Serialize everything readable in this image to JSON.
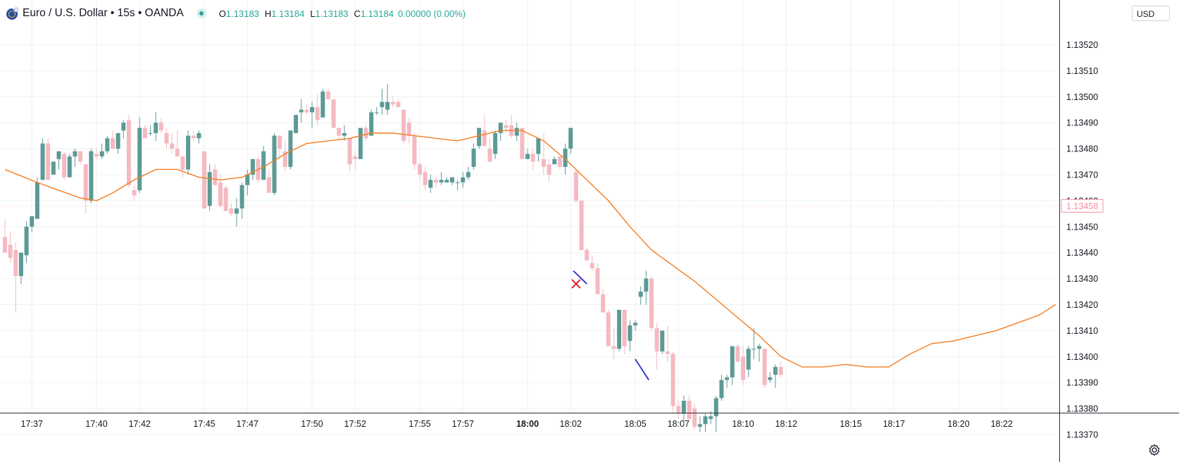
{
  "header": {
    "symbol_title": "Euro / U.S. Dollar • 15s • OANDA",
    "o_label": "O",
    "o_value": "1.13183",
    "h_label": "H",
    "h_value": "1.13184",
    "l_label": "L",
    "l_value": "1.13183",
    "c_label": "C",
    "c_value": "1.13184",
    "change": "0.00000 (0.00%)"
  },
  "currency_button": "USD",
  "icons": {
    "logo": "euro-flag-logo-icon",
    "status": "market-status-dot-icon",
    "settings": "gear-icon"
  },
  "colors": {
    "up": "#5b9a96",
    "down": "#f4b9c1",
    "ma": "#f57c1f",
    "price_label": "#f48fa0",
    "marker": "#3b3bd0"
  },
  "chart_data": {
    "type": "candlestick",
    "ylim": [
      1.13367,
      1.13535
    ],
    "y_ticks": [
      "1.13370",
      "1.13380",
      "1.13390",
      "1.13400",
      "1.13410",
      "1.13420",
      "1.13430",
      "1.13440",
      "1.13450",
      "1.13460",
      "1.13470",
      "1.13480",
      "1.13490",
      "1.13500",
      "1.13510",
      "1.13520"
    ],
    "x_ticks": [
      {
        "label": "17:37",
        "i": 5
      },
      {
        "label": "17:40",
        "i": 17
      },
      {
        "label": "17:42",
        "i": 25
      },
      {
        "label": "17:45",
        "i": 37
      },
      {
        "label": "17:47",
        "i": 45
      },
      {
        "label": "17:50",
        "i": 57
      },
      {
        "label": "17:52",
        "i": 65
      },
      {
        "label": "17:55",
        "i": 77
      },
      {
        "label": "17:57",
        "i": 85
      },
      {
        "label": "18:00",
        "i": 97,
        "bold": true
      },
      {
        "label": "18:02",
        "i": 105
      },
      {
        "label": "18:05",
        "i": 117
      },
      {
        "label": "18:07",
        "i": 125
      },
      {
        "label": "18:10",
        "i": 137
      },
      {
        "label": "18:12",
        "i": 145
      },
      {
        "label": "18:15",
        "i": 157
      },
      {
        "label": "18:17",
        "i": 165
      },
      {
        "label": "18:20",
        "i": 177
      },
      {
        "label": "18:22",
        "i": 185
      }
    ],
    "last_price_label": "1.13458",
    "last_price": 1.13458,
    "moving_average": [
      [
        0,
        1.13472
      ],
      [
        6,
        1.13467
      ],
      [
        10,
        1.13464
      ],
      [
        14,
        1.13461
      ],
      [
        17,
        1.1346
      ],
      [
        20,
        1.13463
      ],
      [
        24,
        1.13468
      ],
      [
        28,
        1.13472
      ],
      [
        32,
        1.13472
      ],
      [
        36,
        1.13469
      ],
      [
        40,
        1.13468
      ],
      [
        44,
        1.13469
      ],
      [
        48,
        1.13473
      ],
      [
        52,
        1.13478
      ],
      [
        56,
        1.13482
      ],
      [
        60,
        1.13483
      ],
      [
        64,
        1.13484
      ],
      [
        68,
        1.13486
      ],
      [
        72,
        1.13486
      ],
      [
        76,
        1.13485
      ],
      [
        80,
        1.13484
      ],
      [
        84,
        1.13483
      ],
      [
        88,
        1.13485
      ],
      [
        92,
        1.13487
      ],
      [
        96,
        1.13487
      ],
      [
        100,
        1.13483
      ],
      [
        104,
        1.13476
      ],
      [
        108,
        1.13468
      ],
      [
        112,
        1.1346
      ],
      [
        116,
        1.1345
      ],
      [
        120,
        1.13441
      ],
      [
        124,
        1.13435
      ],
      [
        128,
        1.13429
      ],
      [
        132,
        1.13422
      ],
      [
        136,
        1.13415
      ],
      [
        140,
        1.13408
      ],
      [
        144,
        1.134
      ],
      [
        148,
        1.13396
      ],
      [
        152,
        1.13396
      ],
      [
        156,
        1.13397
      ],
      [
        160,
        1.13396
      ],
      [
        164,
        1.13396
      ],
      [
        168,
        1.13401
      ],
      [
        172,
        1.13405
      ],
      [
        176,
        1.13406
      ],
      [
        180,
        1.13408
      ],
      [
        184,
        1.1341
      ],
      [
        188,
        1.13413
      ],
      [
        192,
        1.13416
      ],
      [
        195,
        1.1342
      ]
    ],
    "candles": [
      {
        "o": 1.13446,
        "h": 1.13453,
        "l": 1.1344,
        "c": 1.1344
      },
      {
        "o": 1.13443,
        "h": 1.13448,
        "l": 1.13436,
        "c": 1.13438
      },
      {
        "o": 1.13441,
        "h": 1.13444,
        "l": 1.13417,
        "c": 1.13431
      },
      {
        "o": 1.13431,
        "h": 1.1344,
        "l": 1.13428,
        "c": 1.1344
      },
      {
        "o": 1.13439,
        "h": 1.13452,
        "l": 1.13436,
        "c": 1.1345
      },
      {
        "o": 1.1345,
        "h": 1.13454,
        "l": 1.13448,
        "c": 1.13454
      },
      {
        "o": 1.13453,
        "h": 1.13469,
        "l": 1.13453,
        "c": 1.13467
      },
      {
        "o": 1.13468,
        "h": 1.13484,
        "l": 1.13468,
        "c": 1.13482
      },
      {
        "o": 1.13482,
        "h": 1.13484,
        "l": 1.13468,
        "c": 1.13468
      },
      {
        "o": 1.1347,
        "h": 1.13475,
        "l": 1.1347,
        "c": 1.13475
      },
      {
        "o": 1.13476,
        "h": 1.13479,
        "l": 1.13472,
        "c": 1.13479
      },
      {
        "o": 1.13478,
        "h": 1.13479,
        "l": 1.13468,
        "c": 1.13469
      },
      {
        "o": 1.13469,
        "h": 1.13478,
        "l": 1.13469,
        "c": 1.13477
      },
      {
        "o": 1.13477,
        "h": 1.1348,
        "l": 1.13473,
        "c": 1.13479
      },
      {
        "o": 1.13479,
        "h": 1.13479,
        "l": 1.13474,
        "c": 1.13475
      },
      {
        "o": 1.13474,
        "h": 1.13474,
        "l": 1.13455,
        "c": 1.1346
      },
      {
        "o": 1.1346,
        "h": 1.1348,
        "l": 1.13459,
        "c": 1.13479
      },
      {
        "o": 1.13478,
        "h": 1.1348,
        "l": 1.13476,
        "c": 1.13477
      },
      {
        "o": 1.13477,
        "h": 1.13482,
        "l": 1.13476,
        "c": 1.13479
      },
      {
        "o": 1.13479,
        "h": 1.13485,
        "l": 1.13478,
        "c": 1.13484
      },
      {
        "o": 1.13484,
        "h": 1.13487,
        "l": 1.1348,
        "c": 1.1348
      },
      {
        "o": 1.1348,
        "h": 1.13486,
        "l": 1.13478,
        "c": 1.13486
      },
      {
        "o": 1.13487,
        "h": 1.13491,
        "l": 1.13484,
        "c": 1.1349
      },
      {
        "o": 1.13491,
        "h": 1.13493,
        "l": 1.13465,
        "c": 1.13466
      },
      {
        "o": 1.13464,
        "h": 1.13466,
        "l": 1.1346,
        "c": 1.13462
      },
      {
        "o": 1.13464,
        "h": 1.13492,
        "l": 1.13463,
        "c": 1.13488
      },
      {
        "o": 1.13488,
        "h": 1.13489,
        "l": 1.13484,
        "c": 1.13484
      },
      {
        "o": 1.13486,
        "h": 1.13489,
        "l": 1.13485,
        "c": 1.13486
      },
      {
        "o": 1.13486,
        "h": 1.13494,
        "l": 1.13483,
        "c": 1.1349
      },
      {
        "o": 1.1349,
        "h": 1.13492,
        "l": 1.13486,
        "c": 1.13487
      },
      {
        "o": 1.13486,
        "h": 1.13488,
        "l": 1.1348,
        "c": 1.13482
      },
      {
        "o": 1.13482,
        "h": 1.13486,
        "l": 1.13478,
        "c": 1.1348
      },
      {
        "o": 1.1348,
        "h": 1.13487,
        "l": 1.13477,
        "c": 1.13477
      },
      {
        "o": 1.13477,
        "h": 1.13477,
        "l": 1.13469,
        "c": 1.13472
      },
      {
        "o": 1.13472,
        "h": 1.13487,
        "l": 1.1347,
        "c": 1.13485
      },
      {
        "o": 1.13485,
        "h": 1.13487,
        "l": 1.13483,
        "c": 1.13484
      },
      {
        "o": 1.13484,
        "h": 1.13487,
        "l": 1.13482,
        "c": 1.13486
      },
      {
        "o": 1.13479,
        "h": 1.13479,
        "l": 1.13457,
        "c": 1.13457
      },
      {
        "o": 1.13458,
        "h": 1.13474,
        "l": 1.13456,
        "c": 1.13471
      },
      {
        "o": 1.13472,
        "h": 1.13474,
        "l": 1.13466,
        "c": 1.13466
      },
      {
        "o": 1.13467,
        "h": 1.1347,
        "l": 1.13457,
        "c": 1.13458
      },
      {
        "o": 1.13465,
        "h": 1.13466,
        "l": 1.13456,
        "c": 1.13456
      },
      {
        "o": 1.13457,
        "h": 1.13459,
        "l": 1.13454,
        "c": 1.13455
      },
      {
        "o": 1.13455,
        "h": 1.13461,
        "l": 1.1345,
        "c": 1.13457
      },
      {
        "o": 1.13457,
        "h": 1.13467,
        "l": 1.13453,
        "c": 1.13466
      },
      {
        "o": 1.13466,
        "h": 1.13472,
        "l": 1.13462,
        "c": 1.1347
      },
      {
        "o": 1.1347,
        "h": 1.13476,
        "l": 1.13468,
        "c": 1.13476
      },
      {
        "o": 1.13476,
        "h": 1.13477,
        "l": 1.13467,
        "c": 1.13468
      },
      {
        "o": 1.13468,
        "h": 1.13481,
        "l": 1.13468,
        "c": 1.13479
      },
      {
        "o": 1.13469,
        "h": 1.13472,
        "l": 1.13463,
        "c": 1.13463
      },
      {
        "o": 1.13463,
        "h": 1.13486,
        "l": 1.13462,
        "c": 1.13485
      },
      {
        "o": 1.13485,
        "h": 1.13485,
        "l": 1.13476,
        "c": 1.1348
      },
      {
        "o": 1.13479,
        "h": 1.13483,
        "l": 1.13471,
        "c": 1.13473
      },
      {
        "o": 1.13473,
        "h": 1.13487,
        "l": 1.13472,
        "c": 1.13487
      },
      {
        "o": 1.13486,
        "h": 1.13493,
        "l": 1.13486,
        "c": 1.13493
      },
      {
        "o": 1.13494,
        "h": 1.13499,
        "l": 1.1349,
        "c": 1.13495
      },
      {
        "o": 1.13495,
        "h": 1.13497,
        "l": 1.13493,
        "c": 1.13494
      },
      {
        "o": 1.13494,
        "h": 1.13498,
        "l": 1.13488,
        "c": 1.13496
      },
      {
        "o": 1.13496,
        "h": 1.13501,
        "l": 1.13489,
        "c": 1.13491
      },
      {
        "o": 1.13492,
        "h": 1.13503,
        "l": 1.13492,
        "c": 1.13502
      },
      {
        "o": 1.13502,
        "h": 1.13503,
        "l": 1.13499,
        "c": 1.13499
      },
      {
        "o": 1.13499,
        "h": 1.13499,
        "l": 1.13488,
        "c": 1.13488
      },
      {
        "o": 1.13488,
        "h": 1.13488,
        "l": 1.13484,
        "c": 1.13485
      },
      {
        "o": 1.13485,
        "h": 1.13489,
        "l": 1.13483,
        "c": 1.13486
      },
      {
        "o": 1.13484,
        "h": 1.13484,
        "l": 1.13471,
        "c": 1.13474
      },
      {
        "o": 1.13477,
        "h": 1.13479,
        "l": 1.13472,
        "c": 1.13476
      },
      {
        "o": 1.13476,
        "h": 1.13488,
        "l": 1.13476,
        "c": 1.13488
      },
      {
        "o": 1.13488,
        "h": 1.13489,
        "l": 1.13483,
        "c": 1.13484
      },
      {
        "o": 1.13485,
        "h": 1.13495,
        "l": 1.13485,
        "c": 1.13494
      },
      {
        "o": 1.13494,
        "h": 1.13496,
        "l": 1.13493,
        "c": 1.13494
      },
      {
        "o": 1.13496,
        "h": 1.13503,
        "l": 1.13493,
        "c": 1.13498
      },
      {
        "o": 1.13495,
        "h": 1.13505,
        "l": 1.13493,
        "c": 1.13498
      },
      {
        "o": 1.13498,
        "h": 1.135,
        "l": 1.13496,
        "c": 1.13497
      },
      {
        "o": 1.13498,
        "h": 1.13499,
        "l": 1.13496,
        "c": 1.13496
      },
      {
        "o": 1.13495,
        "h": 1.13495,
        "l": 1.13482,
        "c": 1.13483
      },
      {
        "o": 1.1349,
        "h": 1.13492,
        "l": 1.13482,
        "c": 1.13485
      },
      {
        "o": 1.13485,
        "h": 1.13486,
        "l": 1.13472,
        "c": 1.13474
      },
      {
        "o": 1.13474,
        "h": 1.13475,
        "l": 1.13467,
        "c": 1.1347
      },
      {
        "o": 1.13471,
        "h": 1.13473,
        "l": 1.13464,
        "c": 1.13466
      },
      {
        "o": 1.13465,
        "h": 1.1347,
        "l": 1.13463,
        "c": 1.13468
      },
      {
        "o": 1.13468,
        "h": 1.13469,
        "l": 1.13465,
        "c": 1.13467
      },
      {
        "o": 1.13467,
        "h": 1.13471,
        "l": 1.13466,
        "c": 1.13468
      },
      {
        "o": 1.13467,
        "h": 1.13469,
        "l": 1.13467,
        "c": 1.13468
      },
      {
        "o": 1.13467,
        "h": 1.13469,
        "l": 1.13466,
        "c": 1.13469
      },
      {
        "o": 1.13467,
        "h": 1.13468,
        "l": 1.13464,
        "c": 1.13467
      },
      {
        "o": 1.13467,
        "h": 1.13471,
        "l": 1.13465,
        "c": 1.13469
      },
      {
        "o": 1.13469,
        "h": 1.13473,
        "l": 1.13468,
        "c": 1.13471
      },
      {
        "o": 1.13473,
        "h": 1.13482,
        "l": 1.13472,
        "c": 1.1348
      },
      {
        "o": 1.13481,
        "h": 1.13488,
        "l": 1.1348,
        "c": 1.13488
      },
      {
        "o": 1.13487,
        "h": 1.13493,
        "l": 1.13481,
        "c": 1.13481
      },
      {
        "o": 1.1348,
        "h": 1.13484,
        "l": 1.13475,
        "c": 1.13475
      },
      {
        "o": 1.13478,
        "h": 1.13487,
        "l": 1.13476,
        "c": 1.13486
      },
      {
        "o": 1.13486,
        "h": 1.1349,
        "l": 1.13483,
        "c": 1.1349
      },
      {
        "o": 1.13489,
        "h": 1.13491,
        "l": 1.13486,
        "c": 1.13488
      },
      {
        "o": 1.13489,
        "h": 1.13493,
        "l": 1.13484,
        "c": 1.13485
      },
      {
        "o": 1.13485,
        "h": 1.1349,
        "l": 1.13483,
        "c": 1.13488
      },
      {
        "o": 1.13488,
        "h": 1.13488,
        "l": 1.13476,
        "c": 1.13476
      },
      {
        "o": 1.13476,
        "h": 1.1348,
        "l": 1.13476,
        "c": 1.13478
      },
      {
        "o": 1.13478,
        "h": 1.1348,
        "l": 1.13472,
        "c": 1.13475
      },
      {
        "o": 1.13478,
        "h": 1.13484,
        "l": 1.13475,
        "c": 1.13484
      },
      {
        "o": 1.13476,
        "h": 1.13486,
        "l": 1.1347,
        "c": 1.13473
      },
      {
        "o": 1.13474,
        "h": 1.13476,
        "l": 1.13467,
        "c": 1.1347
      },
      {
        "o": 1.13474,
        "h": 1.13477,
        "l": 1.13474,
        "c": 1.13476
      },
      {
        "o": 1.13477,
        "h": 1.13477,
        "l": 1.13472,
        "c": 1.13473
      },
      {
        "o": 1.13473,
        "h": 1.13482,
        "l": 1.1347,
        "c": 1.1348
      },
      {
        "o": 1.1348,
        "h": 1.13488,
        "l": 1.13478,
        "c": 1.13488
      },
      {
        "o": 1.13471,
        "h": 1.13472,
        "l": 1.13459,
        "c": 1.1346
      },
      {
        "o": 1.1346,
        "h": 1.1346,
        "l": 1.13441,
        "c": 1.13441
      },
      {
        "o": 1.13441,
        "h": 1.13442,
        "l": 1.13437,
        "c": 1.13437
      },
      {
        "o": 1.13436,
        "h": 1.13439,
        "l": 1.13433,
        "c": 1.13434
      },
      {
        "o": 1.13434,
        "h": 1.13436,
        "l": 1.13425,
        "c": 1.13424
      },
      {
        "o": 1.13424,
        "h": 1.13426,
        "l": 1.13417,
        "c": 1.13417
      },
      {
        "o": 1.13417,
        "h": 1.13418,
        "l": 1.13404,
        "c": 1.13404
      },
      {
        "o": 1.13404,
        "h": 1.13411,
        "l": 1.13399,
        "c": 1.13403
      },
      {
        "o": 1.13403,
        "h": 1.13418,
        "l": 1.13402,
        "c": 1.13418
      },
      {
        "o": 1.13418,
        "h": 1.13418,
        "l": 1.13401,
        "c": 1.13404
      },
      {
        "o": 1.13406,
        "h": 1.13414,
        "l": 1.13402,
        "c": 1.13412
      },
      {
        "o": 1.13412,
        "h": 1.13414,
        "l": 1.1341,
        "c": 1.13413
      },
      {
        "o": 1.13423,
        "h": 1.13427,
        "l": 1.1342,
        "c": 1.13425
      },
      {
        "o": 1.13425,
        "h": 1.13433,
        "l": 1.1342,
        "c": 1.1343
      },
      {
        "o": 1.1343,
        "h": 1.13431,
        "l": 1.1341,
        "c": 1.13411
      },
      {
        "o": 1.13411,
        "h": 1.13413,
        "l": 1.13395,
        "c": 1.13402
      },
      {
        "o": 1.13402,
        "h": 1.1341,
        "l": 1.13401,
        "c": 1.1341
      },
      {
        "o": 1.13402,
        "h": 1.13412,
        "l": 1.13398,
        "c": 1.13401
      },
      {
        "o": 1.13401,
        "h": 1.13402,
        "l": 1.13378,
        "c": 1.13381
      },
      {
        "o": 1.13381,
        "h": 1.13383,
        "l": 1.13376,
        "c": 1.13378
      },
      {
        "o": 1.13378,
        "h": 1.13385,
        "l": 1.13374,
        "c": 1.13383
      },
      {
        "o": 1.13383,
        "h": 1.13385,
        "l": 1.13375,
        "c": 1.13376
      },
      {
        "o": 1.1338,
        "h": 1.13382,
        "l": 1.13372,
        "c": 1.13373
      },
      {
        "o": 1.13373,
        "h": 1.13377,
        "l": 1.13371,
        "c": 1.13374
      },
      {
        "o": 1.13374,
        "h": 1.13378,
        "l": 1.13371,
        "c": 1.13377
      },
      {
        "o": 1.13376,
        "h": 1.13379,
        "l": 1.13374,
        "c": 1.13377
      },
      {
        "o": 1.13377,
        "h": 1.13385,
        "l": 1.13371,
        "c": 1.13384
      },
      {
        "o": 1.13384,
        "h": 1.13393,
        "l": 1.13383,
        "c": 1.13391
      },
      {
        "o": 1.13391,
        "h": 1.13393,
        "l": 1.13388,
        "c": 1.13392
      },
      {
        "o": 1.13392,
        "h": 1.13404,
        "l": 1.13389,
        "c": 1.13404
      },
      {
        "o": 1.13404,
        "h": 1.13405,
        "l": 1.13398,
        "c": 1.13398
      },
      {
        "o": 1.134,
        "h": 1.13404,
        "l": 1.13389,
        "c": 1.13391
      },
      {
        "o": 1.13395,
        "h": 1.13404,
        "l": 1.13392,
        "c": 1.13403
      },
      {
        "o": 1.13403,
        "h": 1.13411,
        "l": 1.13399,
        "c": 1.13403
      },
      {
        "o": 1.13403,
        "h": 1.13405,
        "l": 1.13398,
        "c": 1.13404
      },
      {
        "o": 1.13403,
        "h": 1.13403,
        "l": 1.13388,
        "c": 1.13389
      },
      {
        "o": 1.13391,
        "h": 1.13394,
        "l": 1.1339,
        "c": 1.13392
      },
      {
        "o": 1.13393,
        "h": 1.13397,
        "l": 1.13388,
        "c": 1.13396
      },
      {
        "o": 1.13396,
        "h": 1.13398,
        "l": 1.13392,
        "c": 1.13393
      }
    ]
  },
  "drawings": {
    "cross_marker": {
      "i": 106,
      "price": 1.13428
    },
    "line_1": [
      [
        105.5,
        1.13433
      ],
      [
        108.0,
        1.13428
      ]
    ],
    "line_2": [
      [
        117.0,
        1.13399
      ],
      [
        119.5,
        1.13391
      ]
    ]
  }
}
